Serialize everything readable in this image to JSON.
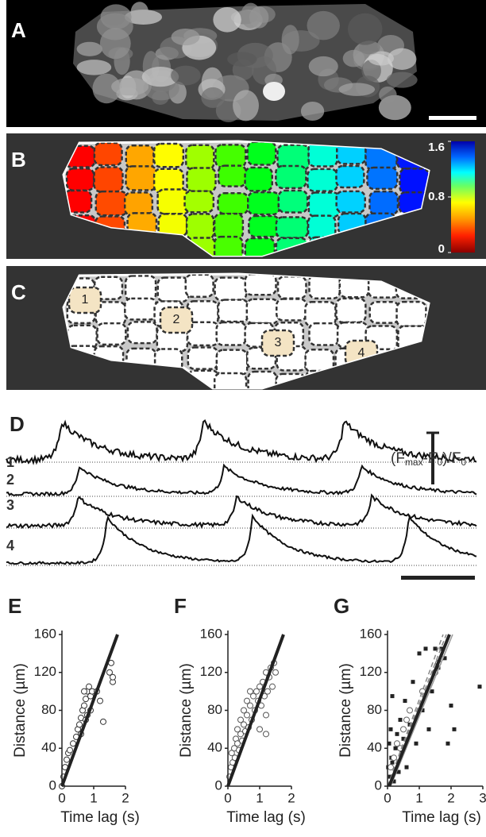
{
  "panel_labels": [
    "A",
    "B",
    "C",
    "D"
  ],
  "colorbar": {
    "lim": [
      0,
      1.6
    ],
    "ticks": [
      1.6,
      0.8,
      0
    ]
  },
  "cell_labels": [
    "1",
    "2",
    "3",
    "4"
  ],
  "trace_labels": [
    "1",
    "2",
    "3",
    "4"
  ],
  "scale_label": [
    {
      "text": "(F"
    },
    {
      "text": "max",
      "sub": true
    },
    {
      "text": "-F"
    },
    {
      "text": "0",
      "sub": true
    },
    {
      "text": ")/F"
    },
    {
      "text": "0",
      "sub": true
    }
  ],
  "chart_data": [
    {
      "type": "scatter",
      "panel": "E",
      "xlabel": "Time lag (s)",
      "ylabel": "Distance (µm)",
      "xlim": [
        0,
        2
      ],
      "ylim": [
        0,
        160
      ],
      "xticks": [
        0,
        1,
        2
      ],
      "yticks": [
        0,
        40,
        80,
        120,
        160
      ],
      "series": [
        {
          "marker": "circle",
          "color": "#333333",
          "fill": "#ffffff",
          "x": [
            0,
            0.05,
            0.1,
            0.15,
            0.2,
            0.25,
            0.35,
            0.45,
            0.5,
            0.55,
            0.6,
            0.65,
            0.7,
            0.75,
            0.8,
            0.85,
            0.9,
            0.95,
            0.7,
            0.75,
            0.8,
            1.1,
            1.2,
            1.5,
            1.55,
            1.6,
            1.6,
            1.3,
            0.6,
            0.9
          ],
          "values": [
            0,
            10,
            20,
            28,
            35,
            38,
            45,
            52,
            60,
            65,
            72,
            80,
            85,
            92,
            100,
            105,
            95,
            100,
            100,
            70,
            75,
            100,
            90,
            120,
            130,
            110,
            115,
            68,
            55,
            80
          ]
        }
      ],
      "fits": [
        {
          "color": "#222222",
          "width": 4,
          "dash": false,
          "x": [
            0,
            1.75
          ],
          "y": [
            0,
            160
          ]
        }
      ]
    },
    {
      "type": "scatter",
      "panel": "F",
      "xlabel": "Time lag (s)",
      "ylabel": "Distance (µm)",
      "xlim": [
        0,
        2
      ],
      "ylim": [
        0,
        160
      ],
      "xticks": [
        0,
        1,
        2
      ],
      "yticks": [
        0,
        40,
        80,
        120,
        160
      ],
      "series": [
        {
          "marker": "circle",
          "color": "#555555",
          "fill": "#ffffff",
          "x": [
            0.05,
            0.1,
            0.12,
            0.15,
            0.2,
            0.22,
            0.25,
            0.3,
            0.3,
            0.35,
            0.4,
            0.4,
            0.45,
            0.5,
            0.5,
            0.55,
            0.6,
            0.6,
            0.65,
            0.7,
            0.7,
            0.75,
            0.8,
            0.85,
            0.9,
            0.95,
            1.0,
            1.0,
            1.05,
            1.1,
            1.15,
            1.2,
            1.2,
            1.25,
            1.3,
            1.35,
            1.4,
            1.45,
            1.5,
            1.2
          ],
          "values": [
            10,
            20,
            35,
            25,
            40,
            30,
            50,
            45,
            60,
            38,
            55,
            70,
            48,
            65,
            80,
            58,
            75,
            90,
            62,
            85,
            100,
            70,
            95,
            80,
            100,
            90,
            105,
            60,
            85,
            110,
            95,
            120,
            55,
            100,
            115,
            125,
            105,
            130,
            120,
            75
          ]
        }
      ],
      "fits": [
        {
          "color": "#222222",
          "width": 4,
          "dash": false,
          "x": [
            0,
            1.75
          ],
          "y": [
            0,
            160
          ]
        }
      ]
    },
    {
      "type": "scatter",
      "panel": "G",
      "xlabel": "Time lag (s)",
      "ylabel": "Distance (µm)",
      "xlim": [
        0,
        3
      ],
      "ylim": [
        0,
        160
      ],
      "xticks": [
        0,
        1,
        2,
        3
      ],
      "yticks": [
        0,
        40,
        80,
        120,
        160
      ],
      "series": [
        {
          "marker": "square",
          "color": "#222222",
          "fill": "#222222",
          "x": [
            0.02,
            0.05,
            0.08,
            0.1,
            0.12,
            0.15,
            0.2,
            0.25,
            0.3,
            0.35,
            0.4,
            0.45,
            0.5,
            0.55,
            0.6,
            0.7,
            0.8,
            0.9,
            1.0,
            1.1,
            1.2,
            1.3,
            1.4,
            1.5,
            1.6,
            1.7,
            1.8,
            1.9,
            2.0,
            2.1,
            2.9,
            0.15
          ],
          "values": [
            20,
            45,
            10,
            60,
            30,
            25,
            5,
            40,
            55,
            15,
            70,
            35,
            50,
            90,
            20,
            65,
            110,
            45,
            140,
            80,
            145,
            60,
            100,
            145,
            125,
            145,
            135,
            45,
            85,
            60,
            105,
            95
          ]
        },
        {
          "marker": "circle",
          "color": "#666666",
          "fill": "#ffffff",
          "x": [
            0.1,
            0.2,
            0.3,
            0.4,
            0.5,
            0.6,
            0.7,
            1.1,
            1.5,
            1.6
          ],
          "values": [
            20,
            30,
            45,
            40,
            60,
            70,
            80,
            100,
            120,
            130
          ]
        }
      ],
      "fits": [
        {
          "color": "#888888",
          "width": 1.5,
          "dash": true,
          "x": [
            0,
            1.75
          ],
          "y": [
            0,
            160
          ]
        },
        {
          "color": "#888888",
          "width": 1.5,
          "dash": true,
          "x": [
            0,
            1.85
          ],
          "y": [
            0,
            160
          ]
        },
        {
          "color": "#999999",
          "width": 1.5,
          "dash": false,
          "x": [
            0.1,
            2.05
          ],
          "y": [
            0,
            160
          ]
        },
        {
          "color": "#222222",
          "width": 4,
          "dash": false,
          "x": [
            0.05,
            1.95
          ],
          "y": [
            0,
            160
          ]
        }
      ]
    }
  ]
}
